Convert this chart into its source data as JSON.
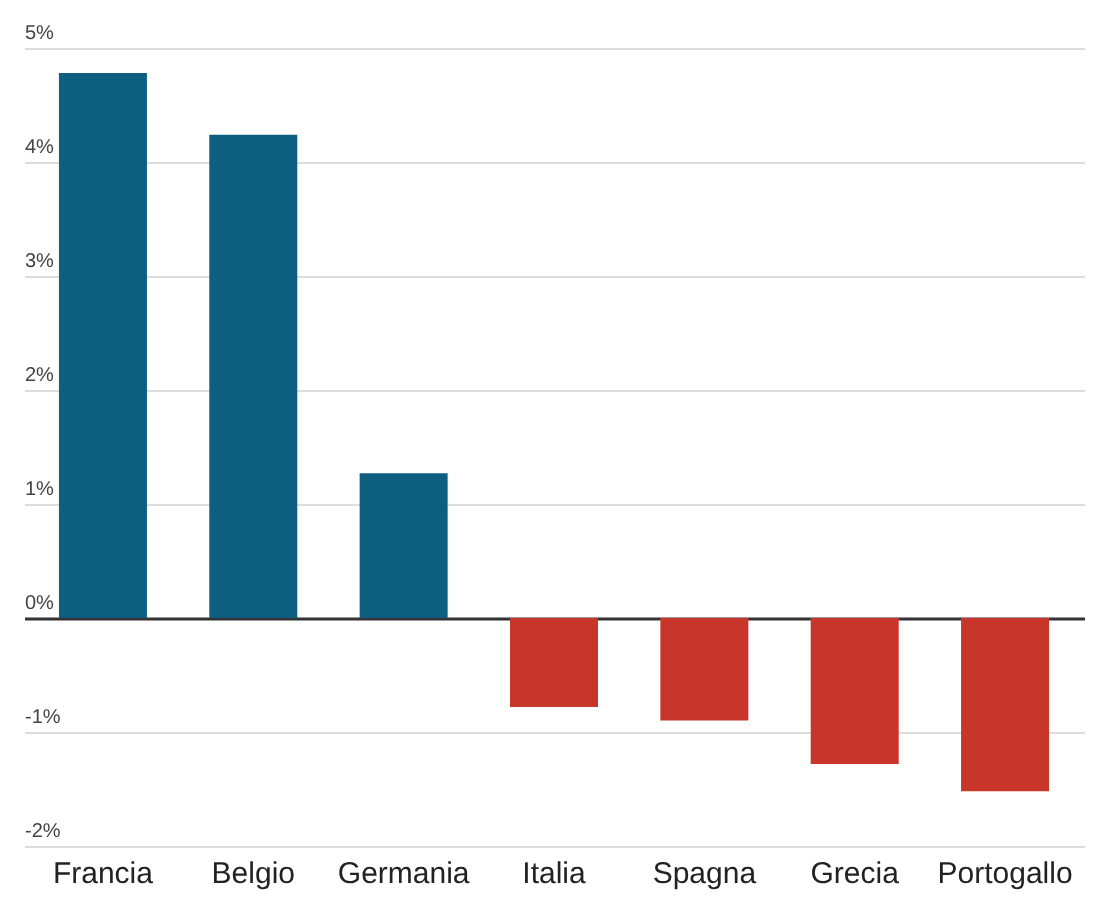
{
  "chart_data": {
    "type": "bar",
    "categories": [
      "Francia",
      "Belgio",
      "Germania",
      "Italia",
      "Spagna",
      "Grecia",
      "Portogallo"
    ],
    "values": [
      4.78,
      4.24,
      1.27,
      -0.78,
      -0.9,
      -1.28,
      -1.52
    ],
    "colors": [
      "#0e5f7f",
      "#0e5f7f",
      "#0e5f7f",
      "#c8352b",
      "#c8352b",
      "#c8352b",
      "#c8352b"
    ],
    "ylim": [
      -2,
      5
    ],
    "yticks": [
      {
        "value": -2,
        "label": "-2%"
      },
      {
        "value": -1,
        "label": "-1%"
      },
      {
        "value": 0,
        "label": "0%"
      },
      {
        "value": 1,
        "label": "1%"
      },
      {
        "value": 2,
        "label": "2%"
      },
      {
        "value": 3,
        "label": "3%"
      },
      {
        "value": 4,
        "label": "4%"
      },
      {
        "value": 5,
        "label": "5%"
      }
    ],
    "grid": true
  }
}
